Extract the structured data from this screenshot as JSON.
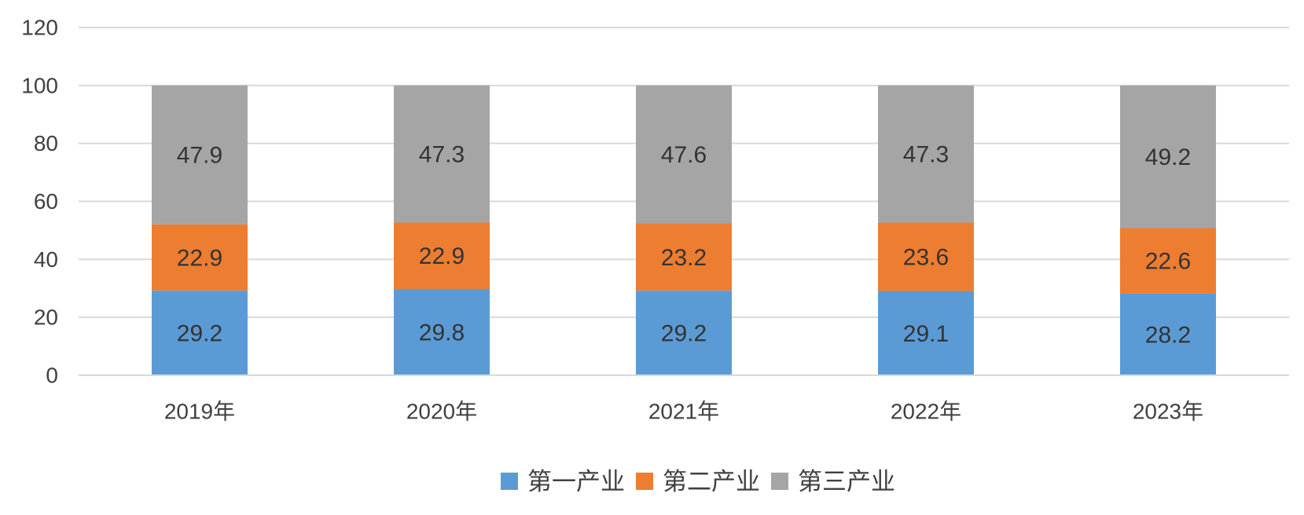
{
  "chart_data": {
    "type": "bar",
    "stacked": true,
    "categories": [
      "2019年",
      "2020年",
      "2021年",
      "2022年",
      "2023年"
    ],
    "series": [
      {
        "name": "第一产业",
        "color": "#5b9bd5",
        "values": [
          29.2,
          29.8,
          29.2,
          29.1,
          28.2
        ]
      },
      {
        "name": "第二产业",
        "color": "#ed7d31",
        "values": [
          22.9,
          22.9,
          23.2,
          23.6,
          22.6
        ]
      },
      {
        "name": "第三产业",
        "color": "#a5a5a5",
        "values": [
          47.9,
          47.3,
          47.6,
          47.3,
          49.2
        ]
      }
    ],
    "title": "",
    "xlabel": "",
    "ylabel": "",
    "ylim": [
      0,
      120
    ],
    "yticks": [
      0,
      20,
      40,
      60,
      80,
      100,
      120
    ],
    "grid": true,
    "legend_position": "bottom",
    "data_labels": true
  }
}
